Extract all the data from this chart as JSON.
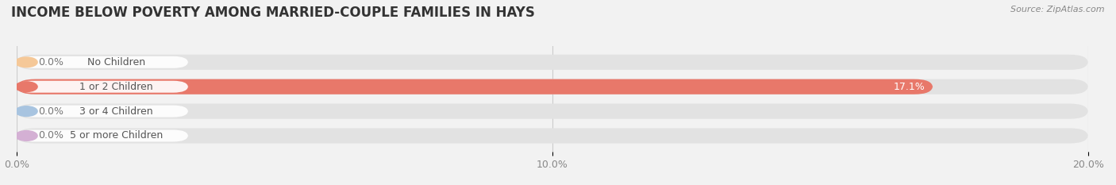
{
  "title": "INCOME BELOW POVERTY AMONG MARRIED-COUPLE FAMILIES IN HAYS",
  "source": "Source: ZipAtlas.com",
  "categories": [
    "No Children",
    "1 or 2 Children",
    "3 or 4 Children",
    "5 or more Children"
  ],
  "values": [
    0.0,
    17.1,
    0.0,
    0.0
  ],
  "bar_colors": [
    "#f5c898",
    "#e8786a",
    "#a8c4e0",
    "#d4b0d4"
  ],
  "label_text_colors": [
    "#999999",
    "#999999",
    "#999999",
    "#999999"
  ],
  "xlim": [
    0,
    20
  ],
  "xticks": [
    0.0,
    10.0,
    20.0
  ],
  "xtick_labels": [
    "0.0%",
    "10.0%",
    "20.0%"
  ],
  "background_color": "#f2f2f2",
  "bar_bg_color": "#e2e2e2",
  "title_fontsize": 12,
  "tick_fontsize": 9,
  "label_fontsize": 9,
  "bar_height": 0.62,
  "value_fontsize": 9
}
